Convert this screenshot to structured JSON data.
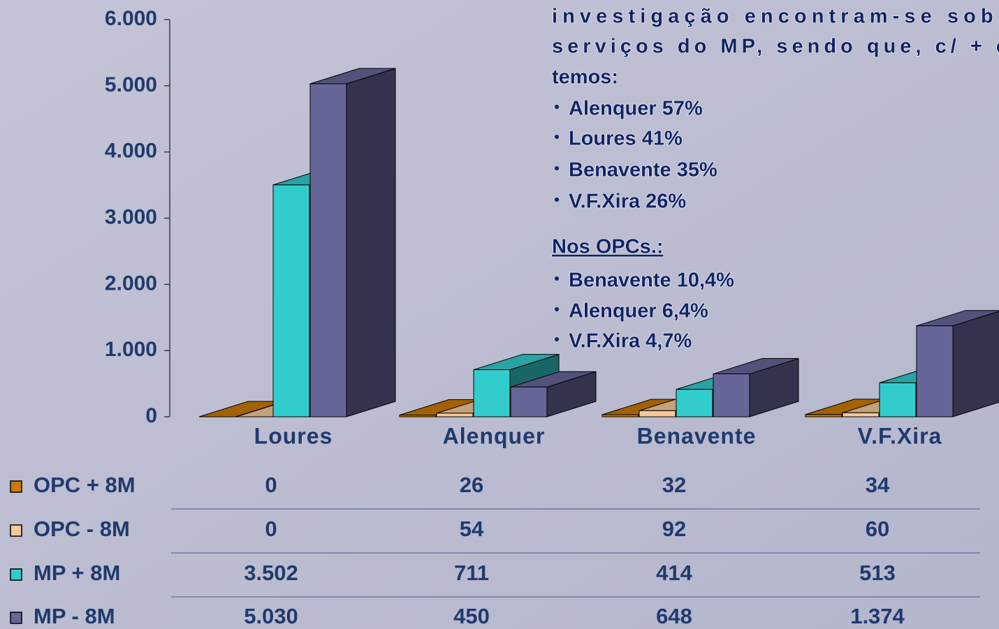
{
  "chart_data": {
    "type": "bar3d",
    "categories": [
      "Loures",
      "Alenquer",
      "Benavente",
      "V.F.Xira"
    ],
    "series": [
      {
        "name": "OPC + 8M",
        "color": "#cc7a00",
        "values": [
          0,
          26,
          32,
          34
        ],
        "value_labels": [
          "0",
          "26",
          "32",
          "34"
        ]
      },
      {
        "name": "OPC - 8M",
        "color": "#f5c99a",
        "values": [
          0,
          54,
          92,
          60
        ],
        "value_labels": [
          "0",
          "54",
          "92",
          "60"
        ]
      },
      {
        "name": "MP + 8M",
        "color": "#33cccc",
        "values": [
          3502,
          711,
          414,
          513
        ],
        "value_labels": [
          "3.502",
          "711",
          "414",
          "513"
        ]
      },
      {
        "name": "MP - 8M",
        "color": "#666699",
        "values": [
          5030,
          450,
          648,
          1374
        ],
        "value_labels": [
          "5.030",
          "450",
          "648",
          "1.374"
        ]
      }
    ],
    "ylim": [
      0,
      6000
    ],
    "yticks": [
      {
        "value": 0,
        "label": "0"
      },
      {
        "value": 1000,
        "label": "1.000"
      },
      {
        "value": 2000,
        "label": "2.000"
      },
      {
        "value": 3000,
        "label": "3.000"
      },
      {
        "value": 4000,
        "label": "4.000"
      },
      {
        "value": 5000,
        "label": "5.000"
      },
      {
        "value": 6000,
        "label": "6.000"
      }
    ],
    "annotations": [
      "investigação encontram-se sobr",
      "serviços do MP, sendo que, c/ + c",
      "temos:",
      "Alenquer 57%",
      "Loures 41%",
      "Benavente 35%",
      "V.F.Xira 26%",
      "Nos OPCs.:",
      "Benavente 10,4%",
      "Alenquer 6,4%",
      "V.F.Xira 4,7%"
    ]
  }
}
